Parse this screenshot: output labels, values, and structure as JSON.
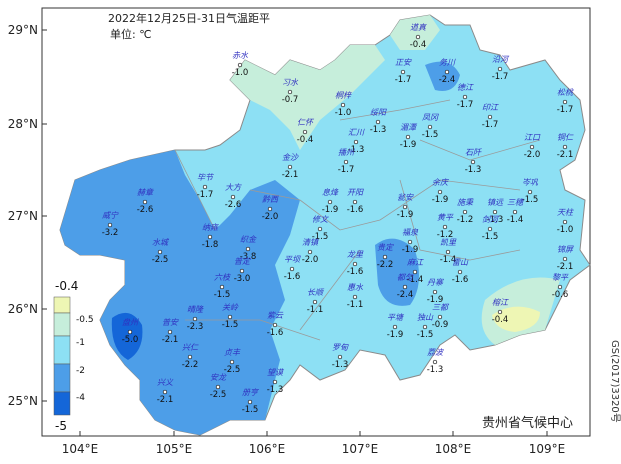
{
  "title": "2022年12月25日-31日气温距平",
  "unit": "单位: ℃",
  "lat_ticks": [
    "29°N",
    "28°N",
    "27°N",
    "26°N",
    "25°N"
  ],
  "lon_ticks": [
    "104°E",
    "105°E",
    "106°E",
    "107°E",
    "108°E",
    "109°E"
  ],
  "legend": {
    "labels": [
      "-0.4",
      "-0.5",
      "-1",
      "-2",
      "-4",
      "-5"
    ]
  },
  "credit": "贵州省气候中心",
  "map_code": "GS(2017)3320号",
  "stations": [
    {
      "name": "道真",
      "value": "-0.4"
    },
    {
      "name": "赤水",
      "value": "-1.0"
    },
    {
      "name": "习水",
      "value": "-0.7"
    },
    {
      "name": "正安",
      "value": "-1.7"
    },
    {
      "name": "务川",
      "value": "-2.4"
    },
    {
      "name": "沿河",
      "value": "-1.7"
    },
    {
      "name": "桐梓",
      "value": "-1.0"
    },
    {
      "name": "绥阳",
      "value": "-1.3"
    },
    {
      "name": "德江",
      "value": "-1.7"
    },
    {
      "name": "印江",
      "value": "-1.7"
    },
    {
      "name": "松桃",
      "value": "-1.7"
    },
    {
      "name": "凤冈",
      "value": "-1.5"
    },
    {
      "name": "仁怀",
      "value": "-0.4"
    },
    {
      "name": "汇川",
      "value": "-1.3"
    },
    {
      "name": "湄潭",
      "value": "-1.9"
    },
    {
      "name": "播州",
      "value": "-1.7"
    },
    {
      "name": "石阡",
      "value": "-1.3"
    },
    {
      "name": "江口",
      "value": "-2.0"
    },
    {
      "name": "铜仁",
      "value": "-2.1"
    },
    {
      "name": "金沙",
      "value": "-2.1"
    },
    {
      "name": "毕节",
      "value": "-1.7"
    },
    {
      "name": "大方",
      "value": "-2.6"
    },
    {
      "name": "赫章",
      "value": "-2.6"
    },
    {
      "name": "黔西",
      "value": "-2.0"
    },
    {
      "name": "息烽",
      "value": "-1.9"
    },
    {
      "name": "开阳",
      "value": "-1.6"
    },
    {
      "name": "余庆",
      "value": "-1.9"
    },
    {
      "name": "瓮安",
      "value": "-1.9"
    },
    {
      "name": "施秉",
      "value": "-1.2"
    },
    {
      "name": "镇远",
      "value": "-1.3"
    },
    {
      "name": "岑巩",
      "value": "-1.5"
    },
    {
      "name": "三穗",
      "value": "-1.4"
    },
    {
      "name": "天柱",
      "value": "-1.0"
    },
    {
      "name": "威宁",
      "value": "-3.2"
    },
    {
      "name": "纳雍",
      "value": "-1.8"
    },
    {
      "name": "修文",
      "value": "-1.5"
    },
    {
      "name": "黄平",
      "value": "-1.2"
    },
    {
      "name": "剑河",
      "value": "-1.5"
    },
    {
      "name": "福泉",
      "value": "-1.9"
    },
    {
      "name": "凯里",
      "value": "-1.4"
    },
    {
      "name": "锦屏",
      "value": "-2.1"
    },
    {
      "name": "织金",
      "value": "-3.8"
    },
    {
      "name": "清镇",
      "value": "-2.0"
    },
    {
      "name": "水城",
      "value": "-2.5"
    },
    {
      "name": "平坝",
      "value": "-1.6"
    },
    {
      "name": "龙里",
      "value": "-1.6"
    },
    {
      "name": "贵定",
      "value": "-2.2"
    },
    {
      "name": "麻江",
      "value": "-1.4"
    },
    {
      "name": "雷山",
      "value": "-1.6"
    },
    {
      "name": "黎平",
      "value": "-0.6"
    },
    {
      "name": "六枝",
      "value": "-1.5"
    },
    {
      "name": "普定",
      "value": "-3.0"
    },
    {
      "name": "长顺",
      "value": "-1.1"
    },
    {
      "name": "惠水",
      "value": "-1.1"
    },
    {
      "name": "都匀",
      "value": "-2.4"
    },
    {
      "name": "丹寨",
      "value": "-1.9"
    },
    {
      "name": "榕江",
      "value": "-0.4"
    },
    {
      "name": "盘州",
      "value": "-5.0"
    },
    {
      "name": "晴隆",
      "value": "-2.3"
    },
    {
      "name": "关岭",
      "value": "-1.5"
    },
    {
      "name": "普安",
      "value": "-2.1"
    },
    {
      "name": "紫云",
      "value": "-1.6"
    },
    {
      "name": "三都",
      "value": "-0.9"
    },
    {
      "name": "平塘",
      "value": "-1.9"
    },
    {
      "name": "独山",
      "value": "-1.5"
    },
    {
      "name": "兴仁",
      "value": "-2.2"
    },
    {
      "name": "贞丰",
      "value": "-2.5"
    },
    {
      "name": "罗甸",
      "value": "-1.3"
    },
    {
      "name": "荔波",
      "value": "-1.3"
    },
    {
      "name": "兴义",
      "value": "-2.1"
    },
    {
      "name": "安龙",
      "value": "-2.5"
    },
    {
      "name": "望谟",
      "value": "-1.3"
    },
    {
      "name": "册亨",
      "value": "-1.5"
    }
  ]
}
